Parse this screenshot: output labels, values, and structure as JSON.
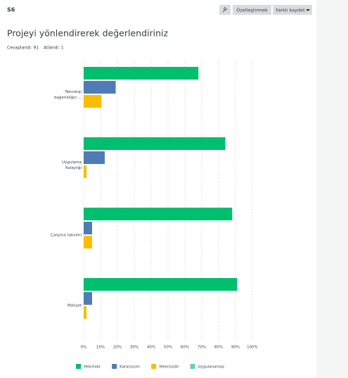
{
  "header": {
    "id": "S6",
    "buttons": [
      "Özelleştirmek",
      "Farklı kaydet"
    ]
  },
  "chart_data": {
    "type": "hbar_grouped",
    "title": "Projeyi yönlendirerek değerlendiriniz",
    "subtitle": [
      "Cevaplandı: 91",
      "Atlandı: 1"
    ],
    "categories": [
      "Teknoloji bağımlılığın ...",
      "Uygulama Kolaylığı",
      "Çalışma takvimi",
      "Maliyet"
    ],
    "series": [
      {
        "name": "Yeterlidir",
        "color": "#00bf6f",
        "values": [
          68,
          84,
          88,
          91
        ]
      },
      {
        "name": "Kararsızım",
        "color": "#507cb6",
        "values": [
          19,
          12.5,
          5,
          5
        ]
      },
      {
        "name": "Yetersizdir",
        "color": "#f9be00",
        "values": [
          10.5,
          1.7,
          5,
          1.7
        ]
      },
      {
        "name": "Uygulanamaz",
        "color": "#6bc8cd",
        "values": [
          0,
          0,
          0,
          0
        ]
      }
    ],
    "xlim": [
      0,
      100
    ],
    "xticks": [
      {
        "value": 0,
        "label": "0%"
      },
      {
        "value": 10,
        "label": "10%"
      },
      {
        "value": 20,
        "label": "20%"
      },
      {
        "value": 30,
        "label": "30%"
      },
      {
        "value": 40,
        "label": "40%"
      },
      {
        "value": 50,
        "label": "50%"
      },
      {
        "value": 60,
        "label": "60%"
      },
      {
        "value": 70,
        "label": "70%"
      },
      {
        "value": 80,
        "label": "80%"
      },
      {
        "value": 90,
        "label": "90%"
      },
      {
        "value": 100,
        "label": "100%"
      }
    ],
    "grid": true,
    "legend": "bottom"
  }
}
